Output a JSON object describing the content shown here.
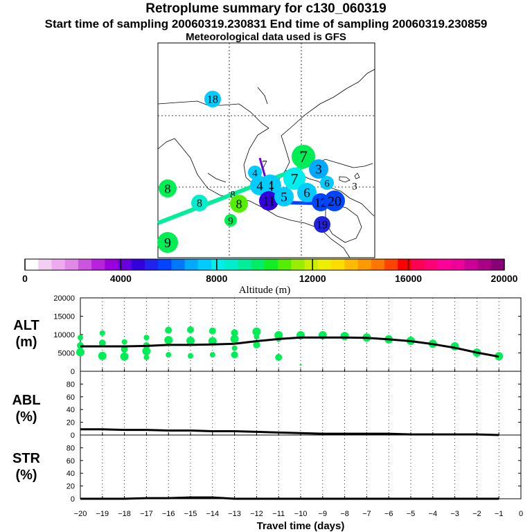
{
  "header": {
    "title": "Retroplume summary for c130_060319",
    "sampling": "Start time of sampling 20060319.230831     End time of sampling 20060319.230859",
    "met": "Meteorological data used is GFS"
  },
  "colorbar": {
    "label": "Altitude (m)",
    "ticks": [
      "0",
      "4000",
      "8000",
      "12000",
      "16000",
      "20000"
    ],
    "colors": [
      "#ffffff",
      "#f4cff4",
      "#eeaaee",
      "#e188e8",
      "#cc55e0",
      "#b822dd",
      "#9900dd",
      "#6a00e0",
      "#3300dd",
      "#2222ee",
      "#0044ff",
      "#0077ff",
      "#00aaff",
      "#00ccff",
      "#00eeee",
      "#00eecc",
      "#00ee99",
      "#00ee66",
      "#11ee22",
      "#55ee00",
      "#99ee00",
      "#ccee00",
      "#eeee00",
      "#ffdd00",
      "#ffbb00",
      "#ff9900",
      "#ff7700",
      "#ff4400",
      "#ff0000",
      "#ff0055",
      "#ff0077",
      "#ff0099",
      "#ee0099",
      "#cc0099",
      "#aa0088",
      "#880077"
    ]
  },
  "map_labels": [
    {
      "text": "18",
      "color": "#00ccff",
      "r": 12
    },
    {
      "text": "7",
      "color": "#00ee55",
      "r": 17
    },
    {
      "text": "7",
      "color": "#3300dd",
      "r": 0
    },
    {
      "text": "4",
      "color": "#00ccff",
      "r": 10
    },
    {
      "text": "8",
      "color": "#00ee55",
      "r": 13
    },
    {
      "text": "3",
      "color": "#00aaff",
      "r": 14
    },
    {
      "text": "6",
      "color": "#00ccff",
      "r": 10
    },
    {
      "text": "3",
      "color": "#ffffff",
      "r": 0
    },
    {
      "text": "7",
      "color": "#00eeee",
      "r": 16
    },
    {
      "text": "4",
      "color": "#00ccff",
      "r": 16
    },
    {
      "text": "4",
      "color": "#00ccff",
      "r": 14
    },
    {
      "text": "8",
      "color": "#00eecc",
      "r": 12
    },
    {
      "text": "8",
      "color": "#00eecc",
      "r": 0
    },
    {
      "text": "8",
      "color": "#55ee00",
      "r": 13
    },
    {
      "text": "11",
      "color": "#3300dd",
      "r": 14
    },
    {
      "text": "5",
      "color": "#00ccff",
      "r": 14
    },
    {
      "text": "6",
      "color": "#00ccff",
      "r": 14
    },
    {
      "text": "12",
      "color": "#0044ff",
      "r": 13
    },
    {
      "text": "20",
      "color": "#0044ff",
      "r": 15
    },
    {
      "text": "9",
      "color": "#00ee55",
      "r": 9
    },
    {
      "text": "19",
      "color": "#2222dd",
      "r": 12
    },
    {
      "text": "9",
      "color": "#00ee55",
      "r": 15
    }
  ],
  "chart_data": [
    {
      "type": "line",
      "title": "ALT",
      "ylabel": "(m)",
      "ylim": [
        0,
        20000
      ],
      "yticks": [
        "0",
        "5000",
        "10000",
        "15000",
        "20000"
      ],
      "x": [
        -20,
        -19,
        -18,
        -17,
        -16,
        -15,
        -14,
        -13,
        -12,
        -11,
        -10,
        -9,
        -8,
        -7,
        -6,
        -5,
        -4,
        -3,
        -2,
        -1
      ],
      "series": [
        {
          "name": "mean altitude",
          "values": [
            6800,
            6800,
            6800,
            6900,
            7200,
            7200,
            7300,
            7500,
            8200,
            8800,
            9200,
            9200,
            9200,
            9100,
            8700,
            8200,
            7400,
            6400,
            5100,
            4000
          ]
        }
      ],
      "scatter": [
        [
          -20,
          9200
        ],
        [
          -20,
          7000
        ],
        [
          -20,
          5200
        ],
        [
          -19,
          10400
        ],
        [
          -19,
          7700
        ],
        [
          -19,
          4200
        ],
        [
          -18,
          8000
        ],
        [
          -18,
          6000
        ],
        [
          -18,
          4000
        ],
        [
          -17,
          9200
        ],
        [
          -17,
          7000
        ],
        [
          -17,
          5500
        ],
        [
          -17,
          3800
        ],
        [
          -16,
          11200
        ],
        [
          -16,
          8500
        ],
        [
          -16,
          4500
        ],
        [
          -15,
          11300
        ],
        [
          -15,
          8300
        ],
        [
          -15,
          4200
        ],
        [
          -14,
          11000
        ],
        [
          -14,
          8200
        ],
        [
          -14,
          4500
        ],
        [
          -13,
          10500
        ],
        [
          -13,
          8800
        ],
        [
          -13,
          6300
        ],
        [
          -13,
          4500
        ],
        [
          -12,
          10800
        ],
        [
          -12,
          9400
        ],
        [
          -12,
          7200
        ],
        [
          -11,
          9800
        ],
        [
          -11,
          8800
        ],
        [
          -11,
          3800
        ],
        [
          -10,
          9800
        ],
        [
          -10,
          1800
        ],
        [
          -9,
          9800
        ],
        [
          -8,
          9600
        ],
        [
          -7,
          9200
        ],
        [
          -6,
          8700
        ],
        [
          -5,
          8300
        ],
        [
          -4,
          7500
        ],
        [
          -3,
          6800
        ],
        [
          -2,
          5100
        ],
        [
          -1,
          4100
        ]
      ]
    },
    {
      "type": "line",
      "title": "ABL",
      "ylabel": "(%)",
      "ylim": [
        0,
        100
      ],
      "yticks": [
        "0",
        "20",
        "40",
        "60",
        "80"
      ],
      "x": [
        -20,
        -19,
        -18,
        -17,
        -16,
        -15,
        -14,
        -13,
        -12,
        -11,
        -10,
        -9,
        -8,
        -7,
        -6,
        -5,
        -4,
        -3,
        -2,
        -1
      ],
      "series": [
        {
          "name": "ABL fraction",
          "values": [
            9,
            9,
            8,
            8,
            7,
            7,
            6,
            6,
            5,
            4,
            3,
            2,
            2,
            2,
            2,
            1,
            1,
            1,
            1,
            0
          ]
        }
      ]
    },
    {
      "type": "line",
      "title": "STR",
      "ylabel": "(%)",
      "ylim": [
        0,
        100
      ],
      "yticks": [
        "0",
        "20",
        "40",
        "60",
        "80"
      ],
      "xlabel": "Travel time (days)",
      "xticks": [
        "−20",
        "−19",
        "−18",
        "−17",
        "−16",
        "−15",
        "−14",
        "−13",
        "−12",
        "−11",
        "−10",
        "−9",
        "−8",
        "−7",
        "−6",
        "−5",
        "−4",
        "−3",
        "−2",
        "−1",
        "0"
      ],
      "x": [
        -20,
        -19,
        -18,
        -17,
        -16,
        -15,
        -14,
        -13,
        -12,
        -11,
        -10,
        -9,
        -8,
        -7,
        -6,
        -5,
        -4,
        -3,
        -2,
        -1
      ],
      "series": [
        {
          "name": "STR fraction",
          "values": [
            0,
            0,
            0,
            1,
            1,
            2,
            2,
            0,
            0,
            0,
            0,
            0,
            0,
            0,
            0,
            0,
            0,
            0,
            0,
            0
          ]
        }
      ]
    }
  ]
}
